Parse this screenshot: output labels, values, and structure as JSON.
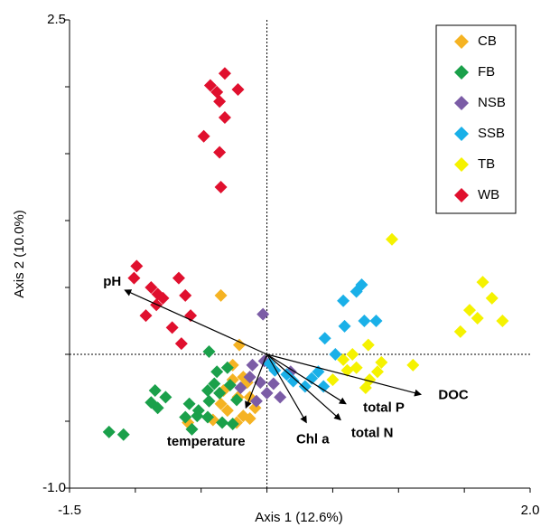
{
  "chart_data": {
    "type": "scatter",
    "x_label": "Axis 1 (12.6%)",
    "y_label": "Axis 2 (10.0%)",
    "xlim": [
      -1.5,
      2.0
    ],
    "ylim": [
      -1.0,
      2.5
    ],
    "xticks": [
      -1.5,
      {
        "value": 2.0,
        "label": "2.0"
      }
    ],
    "yticks": [
      {
        "value": -1.0,
        "label": "-1.0"
      },
      2.5
    ],
    "minor_xticks": [
      -1.0,
      -0.5,
      0,
      0.5,
      1.0,
      1.5
    ],
    "minor_yticks": [
      -0.5,
      0,
      0.5,
      1.0,
      1.5,
      2.0
    ],
    "legend": "top-right",
    "series": [
      {
        "name": "CB",
        "color": "#f5b323",
        "x": [
          -0.35,
          -0.21,
          -0.26,
          -0.18,
          -0.33,
          -0.22,
          -0.13,
          -0.35,
          -0.18,
          -0.13,
          -0.41,
          -0.6,
          -0.23,
          -0.3,
          -0.09,
          -0.15,
          -0.26
        ],
        "y": [
          0.44,
          0.07,
          -0.08,
          -0.17,
          -0.27,
          -0.32,
          -0.32,
          -0.37,
          -0.46,
          -0.48,
          -0.49,
          -0.51,
          -0.51,
          -0.42,
          -0.4,
          -0.21,
          -0.19
        ]
      },
      {
        "name": "FB",
        "color": "#1aa04a",
        "x": [
          -0.44,
          -0.38,
          -0.4,
          -0.45,
          -0.36,
          -0.28,
          -0.85,
          -0.77,
          -0.88,
          -0.83,
          -0.59,
          -0.52,
          -0.44,
          -0.62,
          -0.53,
          -0.45,
          -0.26,
          -0.57,
          -1.09,
          -1.2,
          -0.34,
          -0.23,
          -0.3
        ],
        "y": [
          0.02,
          -0.13,
          -0.22,
          -0.27,
          -0.29,
          -0.23,
          -0.27,
          -0.32,
          -0.36,
          -0.4,
          -0.37,
          -0.42,
          -0.35,
          -0.47,
          -0.46,
          -0.47,
          -0.52,
          -0.56,
          -0.6,
          -0.58,
          -0.51,
          -0.34,
          -0.1
        ]
      },
      {
        "name": "NSB",
        "color": "#7b5ca6",
        "x": [
          -0.03,
          -0.13,
          -0.05,
          0.05,
          0.0,
          -0.08,
          -0.2,
          0.18,
          0.1,
          -0.02,
          -0.11
        ],
        "y": [
          0.3,
          -0.17,
          -0.21,
          -0.22,
          -0.29,
          -0.35,
          -0.25,
          -0.13,
          -0.32,
          -0.05,
          -0.08
        ]
      },
      {
        "name": "SSB",
        "color": "#1ab0e8",
        "x": [
          0.72,
          0.68,
          0.58,
          0.59,
          0.74,
          0.83,
          0.44,
          0.52,
          0.39,
          0.34,
          0.43,
          0.2,
          0.29,
          0.15,
          0.02,
          0.06
        ],
        "y": [
          0.52,
          0.47,
          0.4,
          0.21,
          0.25,
          0.25,
          0.12,
          0.0,
          -0.13,
          -0.18,
          -0.24,
          -0.2,
          -0.24,
          -0.15,
          -0.07,
          -0.12
        ]
      },
      {
        "name": "TB",
        "color": "#f5f200",
        "x": [
          0.95,
          1.64,
          1.71,
          1.54,
          1.6,
          1.79,
          1.47,
          0.77,
          0.65,
          0.58,
          0.68,
          0.78,
          1.11,
          0.87,
          0.75,
          0.5,
          0.61,
          0.84
        ],
        "y": [
          0.86,
          0.54,
          0.42,
          0.33,
          0.27,
          0.25,
          0.17,
          0.07,
          0.0,
          -0.04,
          -0.1,
          -0.19,
          -0.08,
          -0.06,
          -0.25,
          -0.19,
          -0.12,
          -0.13
        ]
      },
      {
        "name": "WB",
        "color": "#e0102e",
        "x": [
          -0.32,
          -0.43,
          -0.22,
          -0.38,
          -0.36,
          -0.32,
          -0.48,
          -0.36,
          -0.35,
          -0.99,
          -1.01,
          -0.67,
          -0.88,
          -0.83,
          -0.79,
          -0.62,
          -0.92,
          -0.58,
          -0.72,
          -0.65,
          -0.84
        ],
        "y": [
          2.1,
          2.01,
          1.98,
          1.96,
          1.89,
          1.77,
          1.63,
          1.51,
          1.25,
          0.66,
          0.57,
          0.57,
          0.5,
          0.45,
          0.42,
          0.44,
          0.29,
          0.29,
          0.2,
          0.08,
          0.37
        ]
      }
    ],
    "vectors": [
      {
        "label": "pH",
        "x": -1.08,
        "y": 0.48
      },
      {
        "label": "temperature",
        "x": -0.16,
        "y": -0.4
      },
      {
        "label": "Chl a",
        "x": 0.3,
        "y": -0.51
      },
      {
        "label": "total N",
        "x": 0.56,
        "y": -0.49
      },
      {
        "label": "total P",
        "x": 0.6,
        "y": -0.37
      },
      {
        "label": "DOC",
        "x": 1.17,
        "y": -0.3
      }
    ]
  }
}
